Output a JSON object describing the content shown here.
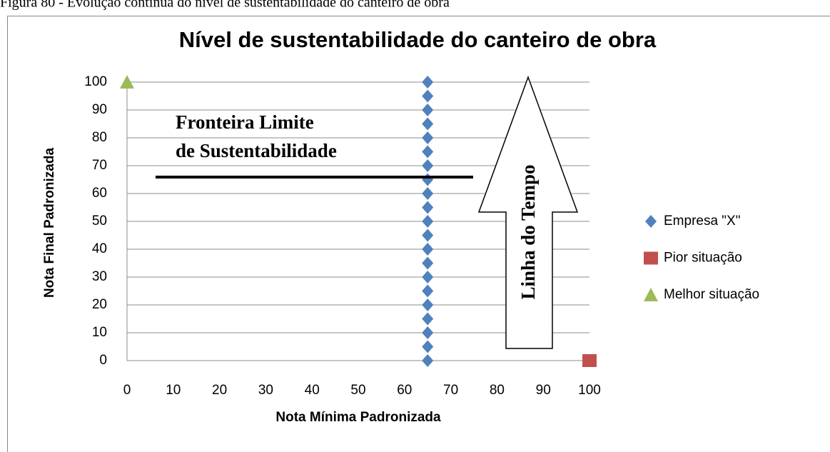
{
  "caption": "Figura 80 - Evolução contínua do nível de sustentabilidade do canteiro de obra",
  "chart_data": {
    "type": "scatter",
    "title": "Nível de sustentabilidade  do canteiro de obra",
    "xlabel": "Nota Mínima  Padronizada",
    "ylabel": "Nota Final Padronizada",
    "series": [
      {
        "name": "Empresa \"X\"",
        "color": "#4f81bd",
        "marker": "diamond",
        "x": [
          65,
          65,
          65,
          65,
          65,
          65,
          65,
          65,
          65,
          65,
          65,
          65,
          65,
          65,
          65,
          65,
          65,
          65,
          65,
          65,
          65
        ],
        "values": [
          0,
          5,
          10,
          15,
          20,
          25,
          30,
          35,
          40,
          45,
          50,
          55,
          60,
          65,
          70,
          75,
          80,
          85,
          90,
          95,
          100
        ]
      },
      {
        "name": "Pior situação",
        "color": "#c0504d",
        "marker": "square",
        "x": [
          100
        ],
        "values": [
          0
        ]
      },
      {
        "name": "Melhor situação",
        "color": "#9bbb59",
        "marker": "triangle",
        "x": [
          0
        ],
        "values": [
          100
        ]
      }
    ],
    "xlim": [
      0,
      100
    ],
    "xticks": [
      0,
      10,
      20,
      30,
      40,
      50,
      60,
      70,
      80,
      90,
      100
    ],
    "ylim": [
      0,
      100
    ],
    "yticks": [
      0,
      10,
      20,
      30,
      40,
      50,
      60,
      70,
      80,
      90,
      100
    ],
    "grid": true,
    "legend": "right",
    "annotations": [
      "Fronteira Limite",
      "de Sustentabilidade",
      "Linha do Tempo"
    ]
  }
}
